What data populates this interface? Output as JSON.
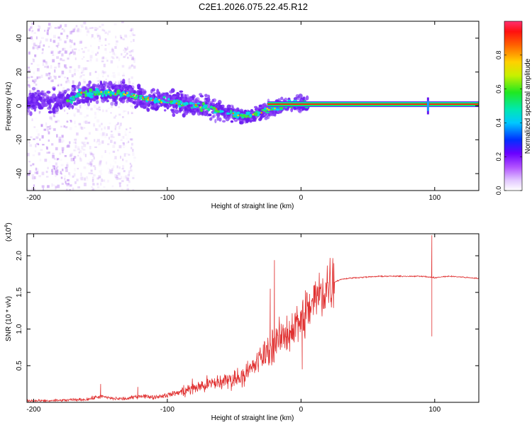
{
  "title": "C2E1.2026.075.22.45.R12",
  "colors": {
    "snr_line": "#e03030",
    "spec_low": "#b070f0",
    "spec_mid": "#6a1cf0",
    "spec_high": "#00e0c0",
    "axis": "#000000"
  },
  "chart_data": [
    {
      "type": "heatmap",
      "name": "spectrogram",
      "title": "C2E1.2026.075.22.45.R12",
      "xlabel": "Height of straight line (km)",
      "ylabel": "Frequency (Hz)",
      "xlim": [
        -205,
        133
      ],
      "ylim": [
        -50,
        50
      ],
      "x_ticks": [
        -200,
        -100,
        0,
        100
      ],
      "x_tick_labels": [
        "-200",
        "-100",
        "0",
        "100"
      ],
      "y_ticks": [
        -40,
        -20,
        0,
        20,
        40
      ],
      "y_tick_labels": [
        "-40",
        "-20",
        "0",
        "20",
        "40"
      ],
      "ridge": {
        "x": [
          -205,
          -190,
          -175,
          -165,
          -150,
          -130,
          -115,
          -100,
          -85,
          -70,
          -55,
          -45,
          -35,
          -25,
          -15,
          -5,
          0,
          5,
          133
        ],
        "y": [
          3,
          3,
          3,
          7,
          8,
          7,
          4,
          3,
          1,
          -1,
          -4,
          -6,
          -5,
          -2,
          0,
          1,
          1,
          1,
          1
        ]
      },
      "carrier": {
        "x_start": -25,
        "x_end": 133,
        "freq": 1
      },
      "spike_x": 95,
      "colorbar": {
        "label": "Normalized spectral amplitude",
        "range": [
          0,
          1
        ],
        "ticks": [
          0.0,
          0.2,
          0.4,
          0.6,
          0.8
        ],
        "tick_labels": [
          "0.0",
          "0.2",
          "0.4",
          "0.6",
          "0.8"
        ]
      }
    },
    {
      "type": "line",
      "name": "snr",
      "xlabel": "Height of straight line (km)",
      "ylabel": "SNR (10 * v/v)",
      "scale_label": "(x10",
      "scale_exp": "4",
      "scale_close": ")",
      "xlim": [
        -205,
        133
      ],
      "ylim": [
        0,
        2.3
      ],
      "x_ticks": [
        -200,
        -100,
        0,
        100
      ],
      "x_tick_labels": [
        "-200",
        "-100",
        "0",
        "100"
      ],
      "y_ticks": [
        0.5,
        1.0,
        1.5,
        2.0
      ],
      "y_tick_labels": [
        "0.5",
        "1.0",
        "1.5",
        "2.0"
      ],
      "series": [
        {
          "name": "SNR",
          "x": [
            -205,
            -190,
            -175,
            -160,
            -150,
            -140,
            -130,
            -120,
            -110,
            -100,
            -90,
            -80,
            -70,
            -60,
            -50,
            -40,
            -30,
            -20,
            -10,
            0,
            10,
            20,
            30,
            40,
            60,
            80,
            90,
            95,
            100,
            105,
            110,
            120,
            133
          ],
          "y": [
            0.02,
            0.02,
            0.03,
            0.04,
            0.08,
            0.05,
            0.05,
            0.09,
            0.07,
            0.1,
            0.14,
            0.2,
            0.24,
            0.28,
            0.32,
            0.4,
            0.6,
            0.8,
            0.95,
            1.12,
            1.38,
            1.6,
            1.68,
            1.7,
            1.72,
            1.72,
            1.72,
            1.71,
            1.7,
            1.71,
            1.72,
            1.71,
            1.69
          ]
        }
      ],
      "spikes": [
        {
          "x": -150,
          "y": 0.25
        },
        {
          "x": -122,
          "y": 0.21
        },
        {
          "x": -20,
          "y": 1.94
        },
        {
          "x": -23,
          "y": 1.55
        },
        {
          "x": 1,
          "y": 0.45
        },
        {
          "x": 98,
          "y": 2.28
        },
        {
          "x": 98,
          "y": 0.9
        }
      ]
    }
  ]
}
